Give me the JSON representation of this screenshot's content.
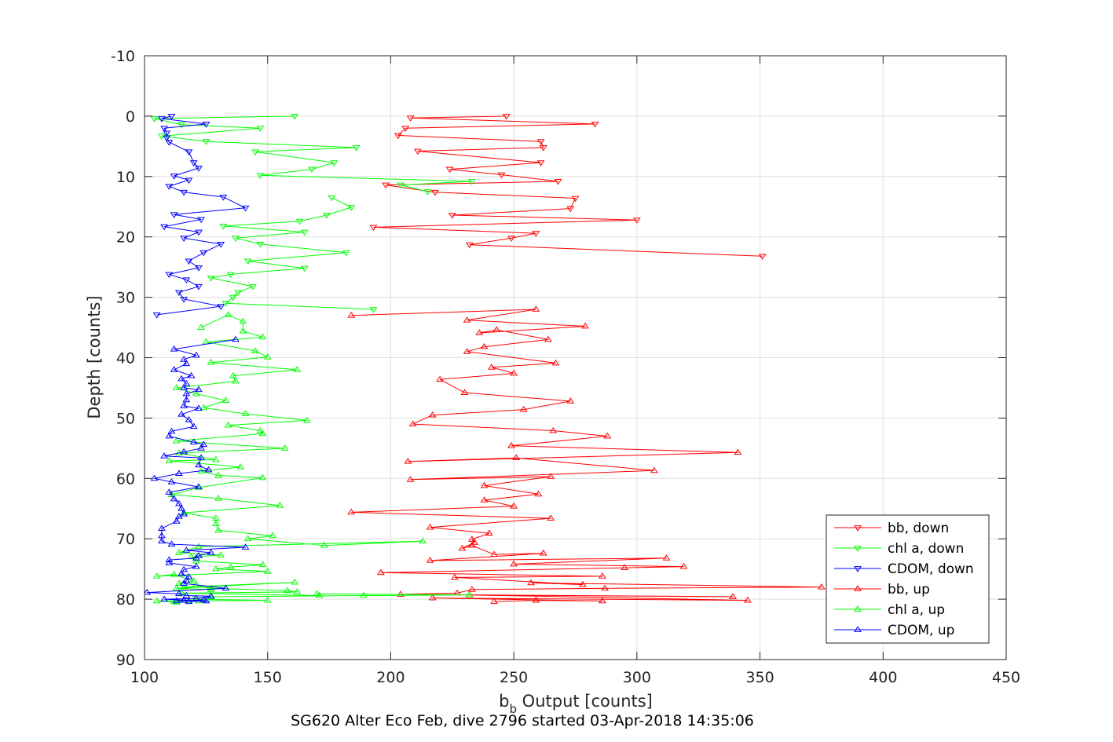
{
  "chart_data": {
    "type": "line",
    "title": "SG620 Alter Eco Feb, dive 2796 started 03-Apr-2018 14:35:06",
    "xlabel_main": "b",
    "xlabel_sub": "b",
    "xlabel_rest": " Output [counts]",
    "ylabel": "Depth [counts]",
    "xlim": [
      100,
      450
    ],
    "ylim": [
      -10,
      90
    ],
    "y_reversed": true,
    "grid": true,
    "legend_position": "bottom-right",
    "x_ticks": [
      100,
      150,
      200,
      250,
      300,
      350,
      400,
      450
    ],
    "y_ticks": [
      -10,
      0,
      10,
      20,
      30,
      40,
      50,
      60,
      70,
      80,
      90
    ],
    "colors": {
      "red": "#ff0000",
      "green": "#00ff00",
      "blue": "#0000ff",
      "grid": "#dfdfdf",
      "axis": "#262626"
    },
    "series": [
      {
        "name": "bb, down",
        "color": "#ff0000",
        "marker": "triangle-down",
        "x": [
          247,
          208,
          283,
          206,
          203,
          261,
          262,
          211,
          261,
          224,
          245,
          268,
          198,
          218,
          275,
          273,
          225,
          300,
          193,
          259,
          249,
          232,
          351
        ],
        "y": [
          0,
          0.3,
          1.3,
          2,
          3.2,
          4.2,
          5.2,
          5.8,
          7.7,
          8.8,
          9.7,
          10.8,
          11.4,
          12.6,
          13.6,
          15.3,
          16.4,
          17.2,
          18.4,
          19.4,
          20.2,
          21.3,
          23.2
        ]
      },
      {
        "name": "chl a, down",
        "color": "#00ff00",
        "marker": "triangle-down",
        "x": [
          161,
          104,
          115,
          147,
          107,
          125,
          186,
          145,
          177,
          168,
          147,
          233,
          204,
          215
        ],
        "y": [
          0,
          0.4,
          1.4,
          2,
          3.3,
          4.2,
          5.2,
          5.9,
          7.7,
          8.8,
          9.8,
          10.8,
          11.4,
          12.5
        ],
        "x2": [
          176,
          184,
          174,
          163,
          132,
          165,
          137,
          147,
          182,
          142,
          165,
          135,
          127,
          144,
          138,
          136,
          133,
          193
        ],
        "y2": [
          13.5,
          15.1,
          16.4,
          17.4,
          18.2,
          19.2,
          20.2,
          21.2,
          22.6,
          24,
          25.2,
          26.2,
          26.8,
          28.2,
          29.2,
          30,
          31,
          32
        ]
      },
      {
        "name": "CDOM, down",
        "color": "#0000ff",
        "marker": "triangle-down",
        "x": [
          111,
          107,
          125,
          108,
          109,
          109,
          110,
          118,
          120,
          122,
          112,
          118,
          110,
          116,
          132,
          141,
          112,
          123,
          108,
          122,
          116,
          131,
          124,
          118,
          122,
          110,
          117,
          122,
          114,
          116,
          131,
          105
        ],
        "y": [
          0,
          0.4,
          1.3,
          2,
          2.8,
          3.6,
          4.3,
          5.9,
          7.7,
          8.6,
          9.9,
          10.6,
          11.6,
          12.6,
          13.4,
          15.2,
          16.3,
          17.1,
          18.3,
          19.2,
          20.2,
          21.2,
          22.6,
          24,
          25.1,
          26.2,
          27.1,
          28.2,
          29.2,
          30.3,
          31.5,
          32.9
        ]
      },
      {
        "name": "bb, up",
        "color": "#ff0000",
        "marker": "triangle-up",
        "x": [
          184,
          259,
          231,
          279,
          236,
          243,
          264,
          238,
          231,
          267,
          241,
          250,
          220,
          230,
          273,
          254,
          217,
          209,
          266,
          288,
          249,
          341,
          207,
          251,
          307,
          208,
          265,
          238,
          260,
          238,
          250,
          184,
          265,
          216,
          240,
          233,
          234,
          229,
          233,
          242,
          262,
          216,
          312,
          250,
          319,
          295,
          196,
          286,
          226,
          278,
          257,
          375,
          287,
          233,
          227,
          204,
          339,
          232,
          345,
          217,
          286,
          259,
          242
        ],
        "y": [
          33,
          32,
          33.8,
          34.8,
          35.9,
          35.4,
          37,
          38.2,
          39,
          40.9,
          41.6,
          42.6,
          43.6,
          45.8,
          47.2,
          48.6,
          49.5,
          51,
          52.1,
          53,
          54.6,
          55.7,
          57.2,
          56.6,
          58.7,
          60.2,
          59.7,
          61.2,
          62.6,
          63.6,
          64.6,
          65.6,
          66.6,
          68.1,
          69.1,
          70.1,
          70.6,
          71.6,
          71.1,
          72.6,
          72.4,
          73.6,
          73.2,
          74.2,
          74.6,
          74.8,
          75.6,
          76.2,
          76.4,
          77.6,
          77.3,
          78,
          78.2,
          78.4,
          79,
          79.2,
          79.6,
          79.3,
          80.2,
          79.8,
          80.3,
          80.2,
          80.4
        ]
      },
      {
        "name": "chl a, up",
        "color": "#00ff00",
        "marker": "triangle-up",
        "x": [
          123,
          134,
          140,
          140,
          148,
          125,
          145,
          150,
          127,
          162,
          136,
          137,
          113,
          121,
          133,
          124,
          141,
          166,
          134,
          147,
          148,
          113,
          157,
          114,
          129,
          110,
          139,
          123,
          130,
          148,
          122,
          111,
          130,
          155,
          116,
          129,
          129,
          130,
          152,
          142,
          173,
          213,
          122,
          114,
          131,
          119,
          121,
          148,
          135,
          129,
          150,
          105,
          112,
          120,
          114,
          116,
          161,
          113,
          127,
          121,
          127,
          158,
          162,
          115,
          171,
          170,
          232,
          189,
          127,
          120,
          150,
          105,
          113,
          112,
          118,
          122
        ],
        "y": [
          35,
          32.9,
          34,
          35.6,
          36.6,
          37.4,
          38.9,
          39.9,
          40.8,
          42,
          43,
          43.9,
          45,
          46,
          47.1,
          48.3,
          49.3,
          50.4,
          51.2,
          52.1,
          52.6,
          53.8,
          55,
          55.8,
          56.9,
          57.1,
          58.1,
          58.8,
          59.5,
          59.9,
          61.5,
          62.7,
          63.3,
          64.5,
          65.7,
          66.6,
          67.5,
          68.6,
          69.5,
          70,
          71.1,
          70.4,
          71.3,
          72.3,
          72.7,
          73,
          73.7,
          74.3,
          74.7,
          75,
          75.4,
          76.2,
          75.9,
          77,
          77.4,
          78,
          77.2,
          78.2,
          78.4,
          77.6,
          78.2,
          78.6,
          78.8,
          79,
          79.4,
          79.1,
          79.3,
          79.4,
          79.6,
          80,
          80.2,
          80.3,
          80.5,
          80.4,
          80.3,
          80.3
        ]
      },
      {
        "name": "CDOM, up",
        "color": "#0000ff",
        "marker": "triangle-up",
        "x": [
          137,
          112,
          121,
          116,
          117,
          112,
          119,
          115,
          117,
          116,
          122,
          117,
          117,
          116,
          122,
          115,
          118,
          120,
          111,
          110,
          120,
          124,
          123,
          116,
          108,
          123,
          122,
          126,
          114,
          104,
          111,
          122,
          110,
          112,
          114,
          115,
          116,
          114,
          113,
          107,
          107,
          107,
          111,
          141,
          117,
          127,
          122,
          121,
          110,
          110,
          121,
          116,
          115,
          118,
          117,
          116,
          133,
          101,
          114,
          117,
          127,
          121,
          108,
          125,
          118,
          116,
          113,
          124
        ],
        "y": [
          37,
          38.6,
          39.6,
          40.3,
          41,
          42,
          43,
          43.5,
          44.3,
          45,
          45.3,
          46,
          47,
          48,
          48.4,
          49.4,
          50.3,
          51.4,
          52.2,
          53,
          54,
          54.4,
          55,
          55.6,
          56.3,
          56.6,
          57.8,
          58.6,
          59.2,
          60,
          60.6,
          61.4,
          62.3,
          63.4,
          64.2,
          65,
          65.9,
          66.3,
          67.1,
          68.3,
          69.5,
          70.4,
          70.9,
          71.4,
          71.9,
          72.3,
          72.8,
          73.2,
          73.5,
          74,
          74.6,
          75.1,
          75.8,
          76.3,
          76.9,
          77.4,
          78.2,
          78.9,
          79.1,
          79.4,
          79.5,
          79.9,
          80,
          80.3,
          80.4,
          80.2,
          80.3,
          80.1
        ]
      }
    ]
  }
}
